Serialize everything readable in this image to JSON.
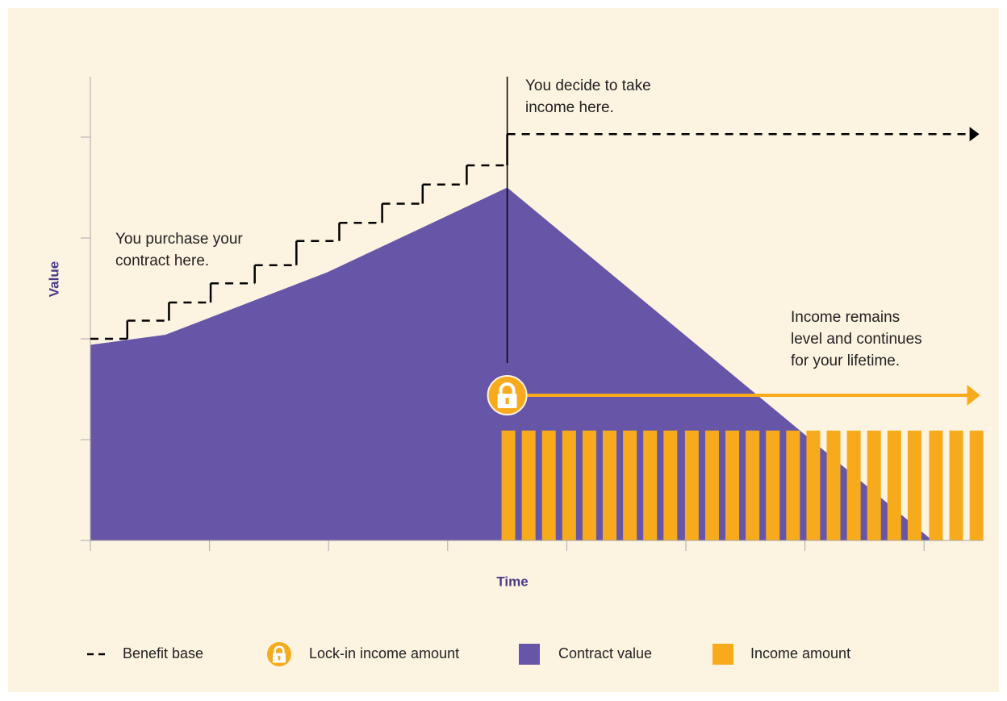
{
  "chart_data": {
    "type": "combo",
    "x_label": "Time",
    "y_label": "Value",
    "xlim": [
      0,
      7.5
    ],
    "ylim": [
      0,
      4.6
    ],
    "xticks": [
      0,
      1,
      2,
      3,
      4,
      5,
      6,
      7
    ],
    "yticks": [
      0,
      1,
      2,
      3,
      4
    ],
    "series": [
      {
        "name": "Benefit base",
        "type": "step",
        "color": "#000000",
        "x": [
          0,
          0.31,
          0.66,
          1.01,
          1.38,
          1.73,
          2.09,
          2.45,
          2.79,
          3.16,
          3.5,
          7.45
        ],
        "values": [
          2.0,
          2.18,
          2.36,
          2.55,
          2.73,
          2.97,
          3.15,
          3.34,
          3.53,
          3.72,
          4.03,
          4.03
        ]
      },
      {
        "name": "Lock-in income amount",
        "type": "arrow",
        "color": "#f7ab1c",
        "x": [
          3.5,
          7.47
        ],
        "values": [
          1.44,
          1.44
        ]
      },
      {
        "name": "Contract value",
        "type": "area",
        "color": "#6756a8",
        "x": [
          0,
          0.63,
          1.99,
          3.5,
          7.07
        ],
        "values": [
          1.94,
          2.04,
          2.66,
          3.5,
          0
        ]
      },
      {
        "name": "Income amount",
        "type": "bar",
        "color": "#f7ab1c",
        "x": [
          3.51,
          3.68,
          3.85,
          4.02,
          4.19,
          4.36,
          4.53,
          4.7,
          4.87,
          5.05,
          5.22,
          5.39,
          5.56,
          5.73,
          5.9,
          6.07,
          6.24,
          6.41,
          6.58,
          6.75,
          6.92,
          7.1,
          7.27,
          7.44
        ],
        "values": [
          1.09,
          1.09,
          1.09,
          1.09,
          1.09,
          1.09,
          1.09,
          1.09,
          1.09,
          1.09,
          1.09,
          1.09,
          1.09,
          1.09,
          1.09,
          1.09,
          1.09,
          1.09,
          1.09,
          1.09,
          1.09,
          1.09,
          1.09,
          1.09
        ]
      }
    ],
    "annotations": [
      [
        "You purchase your",
        "contract here."
      ],
      [
        "You decide to take",
        "income here."
      ],
      [
        "Income remains",
        "level and continues",
        "for your lifetime."
      ]
    ]
  }
}
